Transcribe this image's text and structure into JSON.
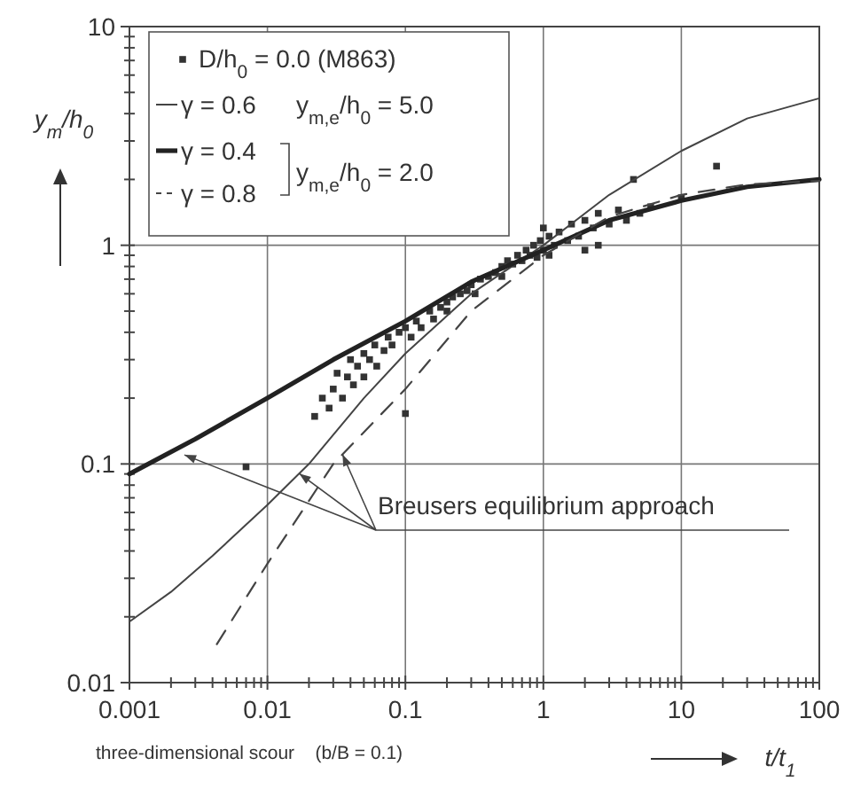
{
  "chart_data": {
    "type": "line",
    "xlabel": "t/t$_{1}$",
    "ylabel": "y$_{m}$/h$_{0}$",
    "log": "xy",
    "grid": true,
    "legend": "top left",
    "xlim": [
      0.001,
      100
    ],
    "ylim": [
      0.01,
      10
    ],
    "xticks": [
      0.001,
      {
        "value": 0.002,
        "label": null
      },
      {
        "value": 0.003,
        "label": null
      },
      {
        "value": 0.004,
        "label": null
      },
      {
        "value": 0.005,
        "label": null
      },
      {
        "value": 0.006,
        "label": null
      },
      {
        "value": 0.007,
        "label": null
      },
      {
        "value": 0.008,
        "label": null
      },
      {
        "value": 0.009,
        "label": null
      },
      0.01,
      {
        "value": 0.02,
        "label": null
      },
      {
        "value": 0.03,
        "label": null
      },
      {
        "value": 0.04,
        "label": null
      },
      {
        "value": 0.05,
        "label": null
      },
      {
        "value": 0.06,
        "label": null
      },
      {
        "value": 0.07,
        "label": null
      },
      {
        "value": 0.08,
        "label": null
      },
      {
        "value": 0.09,
        "label": null
      },
      0.1,
      {
        "value": 0.2,
        "label": null
      },
      {
        "value": 0.3,
        "label": null
      },
      {
        "value": 0.4,
        "label": null
      },
      {
        "value": 0.5,
        "label": null
      },
      {
        "value": 0.6,
        "label": null
      },
      {
        "value": 0.7,
        "label": null
      },
      {
        "value": 0.8,
        "label": null
      },
      {
        "value": 0.9,
        "label": null
      },
      1,
      {
        "value": 2,
        "label": null
      },
      {
        "value": 3,
        "label": null
      },
      {
        "value": 4,
        "label": null
      },
      {
        "value": 5,
        "label": null
      },
      {
        "value": 6,
        "label": null
      },
      {
        "value": 7,
        "label": null
      },
      {
        "value": 8,
        "label": null
      },
      {
        "value": 9,
        "label": null
      },
      10,
      {
        "value": 20,
        "label": null
      },
      {
        "value": 30,
        "label": null
      },
      {
        "value": 40,
        "label": null
      },
      {
        "value": 50,
        "label": null
      },
      {
        "value": 60,
        "label": null
      },
      {
        "value": 70,
        "label": null
      },
      {
        "value": 80,
        "label": null
      },
      {
        "value": 90,
        "label": null
      },
      100
    ],
    "yticks": [
      0.01,
      {
        "value": 0.02,
        "label": null
      },
      {
        "value": 0.03,
        "label": null
      },
      {
        "value": 0.04,
        "label": null
      },
      {
        "value": 0.05,
        "label": null
      },
      {
        "value": 0.06,
        "label": null
      },
      {
        "value": 0.07,
        "label": null
      },
      {
        "value": 0.08,
        "label": null
      },
      {
        "value": 0.09,
        "label": null
      },
      0.1,
      {
        "value": 0.2,
        "label": null
      },
      {
        "value": 0.3,
        "label": null
      },
      {
        "value": 0.4,
        "label": null
      },
      {
        "value": 0.5,
        "label": null
      },
      {
        "value": 0.6,
        "label": null
      },
      {
        "value": 0.7,
        "label": null
      },
      {
        "value": 0.8,
        "label": null
      },
      {
        "value": 0.9,
        "label": null
      },
      1,
      {
        "value": 2,
        "label": null
      },
      {
        "value": 3,
        "label": null
      },
      {
        "value": 4,
        "label": null
      },
      {
        "value": 5,
        "label": null
      },
      {
        "value": 6,
        "label": null
      },
      {
        "value": 7,
        "label": null
      },
      {
        "value": 8,
        "label": null
      },
      {
        "value": 9,
        "label": null
      },
      10
    ],
    "annotations": [
      "y$_{m,e}$/h$_{0}$ = 5.0",
      "y$_{m,e}$/h$_{0}$ = 2.0",
      {
        "text": "Breusers equilibrium approach",
        "x": 0.0025,
        "y": 0.11
      },
      "three-dimensional scour    (b/B = 0.1)"
    ],
    "series": [
      {
        "name": "D/h$_{0}$ = 0.0  (M863)",
        "type": "scatter",
        "marker": "square",
        "color": "#333333",
        "x": [
          0.007,
          0.022,
          0.025,
          0.028,
          0.03,
          0.032,
          0.035,
          0.038,
          0.04,
          0.042,
          0.045,
          0.05,
          0.05,
          0.055,
          0.06,
          0.062,
          0.07,
          0.075,
          0.08,
          0.09,
          0.1,
          0.1,
          0.11,
          0.12,
          0.13,
          0.15,
          0.16,
          0.18,
          0.2,
          0.2,
          0.22,
          0.25,
          0.28,
          0.3,
          0.32,
          0.35,
          0.4,
          0.45,
          0.5,
          0.5,
          0.55,
          0.6,
          0.65,
          0.7,
          0.75,
          0.8,
          0.85,
          0.9,
          0.95,
          1,
          1,
          1.1,
          1.1,
          1.2,
          1.3,
          1.5,
          1.6,
          1.8,
          2,
          2,
          2.3,
          2.5,
          2.5,
          3,
          3.5,
          4,
          4.5,
          5,
          6,
          10,
          18
        ],
        "values": [
          0.097,
          0.165,
          0.2,
          0.18,
          0.22,
          0.26,
          0.2,
          0.25,
          0.3,
          0.23,
          0.28,
          0.32,
          0.25,
          0.3,
          0.35,
          0.28,
          0.33,
          0.38,
          0.35,
          0.4,
          0.17,
          0.42,
          0.38,
          0.45,
          0.42,
          0.5,
          0.46,
          0.52,
          0.55,
          0.5,
          0.58,
          0.6,
          0.62,
          0.66,
          0.6,
          0.7,
          0.72,
          0.75,
          0.8,
          0.72,
          0.85,
          0.82,
          0.9,
          0.85,
          0.95,
          0.9,
          1,
          0.88,
          1.05,
          0.95,
          1.2,
          0.9,
          1.1,
          1,
          1.15,
          1.05,
          1.25,
          1.1,
          1.3,
          0.95,
          1.2,
          1.4,
          1,
          1.25,
          1.45,
          1.3,
          2,
          1.4,
          1.5,
          1.65,
          2.3
        ]
      },
      {
        "name": "γ = 0.6",
        "line_style": "solid",
        "color": "#444444",
        "x": [
          0.001,
          0.002,
          0.004,
          0.01,
          0.02,
          0.05,
          0.1,
          0.3,
          1,
          3,
          10,
          30,
          100
        ],
        "values": [
          0.019,
          0.026,
          0.038,
          0.065,
          0.1,
          0.2,
          0.32,
          0.6,
          1,
          1.7,
          2.7,
          3.8,
          4.7
        ]
      },
      {
        "name": "γ = 0.4",
        "line_style": "solid",
        "color": "#222222",
        "x": [
          0.001,
          0.003,
          0.01,
          0.03,
          0.1,
          0.3,
          1,
          3,
          10,
          30,
          100
        ],
        "values": [
          0.09,
          0.13,
          0.2,
          0.3,
          0.45,
          0.68,
          0.95,
          1.3,
          1.6,
          1.85,
          2
        ]
      },
      {
        "name": "γ = 0.8",
        "line_style": "dashed",
        "color": "#444444",
        "x": [
          0.0043,
          0.01,
          0.03,
          0.1,
          0.3,
          1,
          3,
          10,
          30,
          100
        ],
        "values": [
          0.015,
          0.035,
          0.1,
          0.22,
          0.5,
          0.9,
          1.35,
          1.7,
          1.9,
          1.97
        ]
      }
    ]
  }
}
